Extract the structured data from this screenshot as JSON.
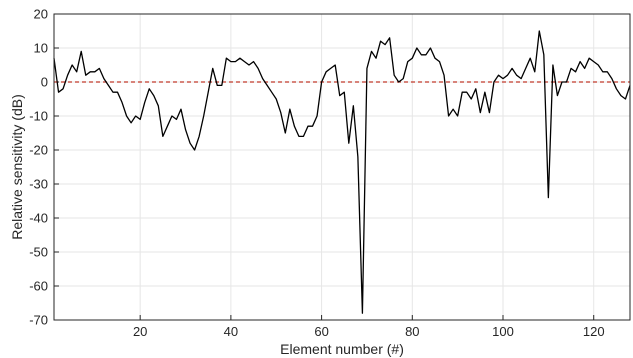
{
  "chart_data": {
    "type": "line",
    "title": "",
    "xlabel": "Element number (#)",
    "ylabel": "Relative sensitivity (dB)",
    "xlim": [
      1,
      128
    ],
    "ylim": [
      -70,
      20
    ],
    "xticks": [
      20,
      40,
      60,
      80,
      100,
      120
    ],
    "yticks": [
      -70,
      -60,
      -50,
      -40,
      -30,
      -20,
      -10,
      0,
      10,
      20
    ],
    "grid": true,
    "reference_line": {
      "y": 0,
      "style": "dashed",
      "color": "#c0392b"
    },
    "series": [
      {
        "color": "#000000",
        "x": [
          1,
          2,
          3,
          4,
          5,
          6,
          7,
          8,
          9,
          10,
          11,
          12,
          13,
          14,
          15,
          16,
          17,
          18,
          19,
          20,
          21,
          22,
          23,
          24,
          25,
          26,
          27,
          28,
          29,
          30,
          31,
          32,
          33,
          34,
          35,
          36,
          37,
          38,
          39,
          40,
          41,
          42,
          43,
          44,
          45,
          46,
          47,
          48,
          49,
          50,
          51,
          52,
          53,
          54,
          55,
          56,
          57,
          58,
          59,
          60,
          61,
          62,
          63,
          64,
          65,
          66,
          67,
          68,
          69,
          70,
          71,
          72,
          73,
          74,
          75,
          76,
          77,
          78,
          79,
          80,
          81,
          82,
          83,
          84,
          85,
          86,
          87,
          88,
          89,
          90,
          91,
          92,
          93,
          94,
          95,
          96,
          97,
          98,
          99,
          100,
          101,
          102,
          103,
          104,
          105,
          106,
          107,
          108,
          109,
          110,
          111,
          112,
          113,
          114,
          115,
          116,
          117,
          118,
          119,
          120,
          121,
          122,
          123,
          124,
          125,
          126,
          127,
          128
        ],
        "y": [
          7,
          -3,
          -2,
          2,
          5,
          3,
          9,
          2,
          3,
          3,
          4,
          1,
          -1,
          -3,
          -3,
          -6,
          -10,
          -12,
          -10,
          -11,
          -6,
          -2,
          -4,
          -7,
          -16,
          -13,
          -10,
          -11,
          -8,
          -14,
          -18,
          -20,
          -16,
          -10,
          -3,
          4,
          -1,
          -1,
          7,
          6,
          6,
          7,
          6,
          5,
          6,
          4,
          1,
          -1,
          -3,
          -5,
          -9,
          -15,
          -8,
          -13,
          -16,
          -16,
          -13,
          -13,
          -10,
          0,
          3,
          4,
          5,
          -4,
          -3,
          -18,
          -7,
          -22,
          -68,
          4,
          9,
          7,
          12,
          11,
          13,
          2,
          0,
          1,
          6,
          7,
          10,
          8,
          8,
          10,
          7,
          6,
          2,
          -10,
          -8,
          -10,
          -3,
          -3,
          -5,
          -2,
          -9,
          -3,
          -9,
          0,
          2,
          1,
          2,
          4,
          2,
          1,
          4,
          7,
          3,
          15,
          8,
          -34,
          5,
          -4,
          0,
          0,
          4,
          3,
          6,
          4,
          7,
          6,
          5,
          3,
          3,
          1,
          -2,
          -4,
          -5,
          -1
        ]
      }
    ]
  }
}
